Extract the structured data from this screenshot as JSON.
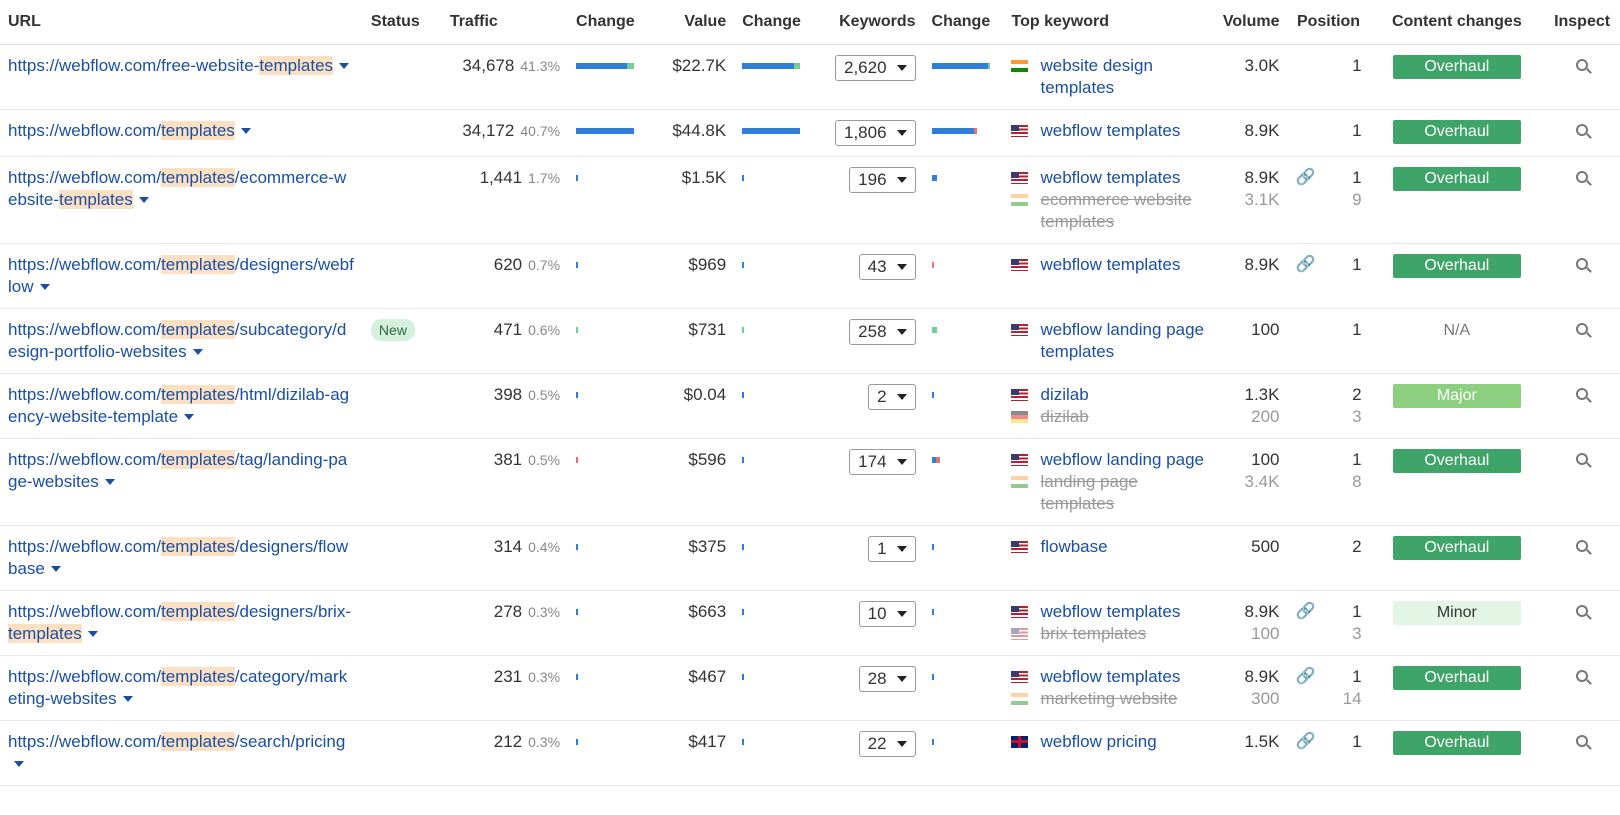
{
  "headers": {
    "url": "URL",
    "status": "Status",
    "traffic": "Traffic",
    "change1": "Change",
    "value": "Value",
    "change2": "Change",
    "keywords": "Keywords",
    "change3": "Change",
    "top_keyword": "Top keyword",
    "volume": "Volume",
    "position": "Position",
    "content_changes": "Content changes",
    "inspect": "Inspect"
  },
  "colors": {
    "link": "#1a4fa3",
    "bar_blue": "#2f7fd8",
    "bar_green": "#6fcf97",
    "bar_red": "#e57373",
    "overhaul": "#3ea468",
    "major": "#8ccf7f",
    "minor": "#e3f6e6",
    "highlight": "#fbe0c4"
  },
  "rows": [
    {
      "url_parts": [
        {
          "t": "https://webflow.com/free-website-"
        },
        {
          "t": "template",
          "hl": true
        },
        {
          "t": "s",
          "hl": true
        }
      ],
      "status": "",
      "traffic": "34,678",
      "traffic_pct": "41.3%",
      "change1": {
        "b": 0.88,
        "g": 0.12,
        "r": 0
      },
      "value": "$22.7K",
      "change2": {
        "b": 0.9,
        "g": 0.1,
        "r": 0
      },
      "keywords": "2,620",
      "change3": {
        "b": 0.96,
        "g": 0.04,
        "r": 0
      },
      "top": [
        {
          "flag": "in",
          "kw": "website design templates",
          "vol": "3.0K",
          "pos": "1",
          "old": false,
          "link": false
        }
      ],
      "content": "Overhaul",
      "content_type": "overhaul"
    },
    {
      "url_parts": [
        {
          "t": "https://webflow.com/"
        },
        {
          "t": "templates",
          "hl": true
        }
      ],
      "status": "",
      "traffic": "34,172",
      "traffic_pct": "40.7%",
      "change1": {
        "b": 1,
        "g": 0,
        "r": 0
      },
      "value": "$44.8K",
      "change2": {
        "b": 1,
        "g": 0,
        "r": 0
      },
      "keywords": "1,806",
      "change3": {
        "b": 0.72,
        "g": 0,
        "r": 0.06
      },
      "top": [
        {
          "flag": "us",
          "kw": "webflow templates",
          "vol": "8.9K",
          "pos": "1",
          "old": false,
          "link": false
        }
      ],
      "content": "Overhaul",
      "content_type": "overhaul"
    },
    {
      "url_parts": [
        {
          "t": "https://webflow.com/"
        },
        {
          "t": "templates",
          "hl": true
        },
        {
          "t": "/ecommerce-website-"
        },
        {
          "t": "templates",
          "hl": true
        }
      ],
      "status": "",
      "traffic": "1,441",
      "traffic_pct": "1.7%",
      "change1": {
        "b": 0.04,
        "g": 0,
        "r": 0
      },
      "value": "$1.5K",
      "change2": {
        "b": 0.03,
        "g": 0,
        "r": 0
      },
      "keywords": "196",
      "change3": {
        "b": 0.08,
        "g": 0,
        "r": 0
      },
      "top": [
        {
          "flag": "us",
          "kw": "webflow templates",
          "vol": "8.9K",
          "pos": "1",
          "old": false,
          "link": true
        },
        {
          "flag": "in",
          "kw": "ecommerce website templates",
          "vol": "3.1K",
          "pos": "9",
          "old": true,
          "link": false
        }
      ],
      "content": "Overhaul",
      "content_type": "overhaul"
    },
    {
      "url_parts": [
        {
          "t": "https://webflow.com/"
        },
        {
          "t": "templates",
          "hl": true
        },
        {
          "t": "/designers/webflow"
        }
      ],
      "status": "",
      "traffic": "620",
      "traffic_pct": "0.7%",
      "change1": {
        "b": 0.03,
        "g": 0,
        "r": 0
      },
      "value": "$969",
      "change2": {
        "b": 0.03,
        "g": 0,
        "r": 0
      },
      "keywords": "43",
      "change3": {
        "b": 0,
        "g": 0,
        "r": 0.03
      },
      "top": [
        {
          "flag": "us",
          "kw": "webflow templates",
          "vol": "8.9K",
          "pos": "1",
          "old": false,
          "link": true
        }
      ],
      "content": "Overhaul",
      "content_type": "overhaul"
    },
    {
      "url_parts": [
        {
          "t": "https://webflow.com/"
        },
        {
          "t": "templates",
          "hl": true
        },
        {
          "t": "/subcategory/design-portfolio-websites"
        }
      ],
      "status": "New",
      "traffic": "471",
      "traffic_pct": "0.6%",
      "change1": {
        "b": 0,
        "g": 0.02,
        "r": 0
      },
      "value": "$731",
      "change2": {
        "b": 0,
        "g": 0.02,
        "r": 0
      },
      "keywords": "258",
      "change3": {
        "b": 0,
        "g": 0.08,
        "r": 0
      },
      "top": [
        {
          "flag": "us",
          "kw": "webflow landing page templates",
          "vol": "100",
          "pos": "1",
          "old": false,
          "link": false
        }
      ],
      "content": "N/A",
      "content_type": "na"
    },
    {
      "url_parts": [
        {
          "t": "https://webflow.com/"
        },
        {
          "t": "templates",
          "hl": true
        },
        {
          "t": "/html/dizilab-agency-website-template"
        }
      ],
      "status": "",
      "traffic": "398",
      "traffic_pct": "0.5%",
      "change1": {
        "b": 0.03,
        "g": 0,
        "r": 0
      },
      "value": "$0.04",
      "change2": {
        "b": 0.03,
        "g": 0,
        "r": 0
      },
      "keywords": "2",
      "change3": {
        "b": 0.03,
        "g": 0,
        "r": 0
      },
      "top": [
        {
          "flag": "us",
          "kw": "dizilab",
          "vol": "1.3K",
          "pos": "2",
          "old": false,
          "link": false
        },
        {
          "flag": "de",
          "kw": "dizilab",
          "vol": "200",
          "pos": "3",
          "old": true,
          "link": false
        }
      ],
      "content": "Major",
      "content_type": "major"
    },
    {
      "url_parts": [
        {
          "t": "https://webflow.com/"
        },
        {
          "t": "templates",
          "hl": true
        },
        {
          "t": "/tag/landing-page-websites"
        }
      ],
      "status": "",
      "traffic": "381",
      "traffic_pct": "0.5%",
      "change1": {
        "b": 0,
        "g": 0,
        "r": 0.03
      },
      "value": "$596",
      "change2": {
        "b": 0.03,
        "g": 0,
        "r": 0
      },
      "keywords": "174",
      "change3": {
        "b": 0.07,
        "g": 0,
        "r": 0.07
      },
      "top": [
        {
          "flag": "us",
          "kw": "webflow landing page",
          "vol": "100",
          "pos": "1",
          "old": false,
          "link": false
        },
        {
          "flag": "in",
          "kw": "landing page templates",
          "vol": "3.4K",
          "pos": "8",
          "old": true,
          "link": false
        }
      ],
      "content": "Overhaul",
      "content_type": "overhaul"
    },
    {
      "url_parts": [
        {
          "t": "https://webflow.com/"
        },
        {
          "t": "templates",
          "hl": true
        },
        {
          "t": "/designers/flowbase"
        }
      ],
      "status": "",
      "traffic": "314",
      "traffic_pct": "0.4%",
      "change1": {
        "b": 0.03,
        "g": 0,
        "r": 0
      },
      "value": "$375",
      "change2": {
        "b": 0.03,
        "g": 0,
        "r": 0
      },
      "keywords": "1",
      "change3": {
        "b": 0.03,
        "g": 0,
        "r": 0
      },
      "top": [
        {
          "flag": "us",
          "kw": "flowbase",
          "vol": "500",
          "pos": "2",
          "old": false,
          "link": false
        }
      ],
      "content": "Overhaul",
      "content_type": "overhaul"
    },
    {
      "url_parts": [
        {
          "t": "https://webflow.com/"
        },
        {
          "t": "templates",
          "hl": true
        },
        {
          "t": "/designers/brix-"
        },
        {
          "t": "templates",
          "hl": true
        }
      ],
      "status": "",
      "traffic": "278",
      "traffic_pct": "0.3%",
      "change1": {
        "b": 0.03,
        "g": 0,
        "r": 0
      },
      "value": "$663",
      "change2": {
        "b": 0.03,
        "g": 0,
        "r": 0
      },
      "keywords": "10",
      "change3": {
        "b": 0.03,
        "g": 0,
        "r": 0
      },
      "top": [
        {
          "flag": "us",
          "kw": "webflow templates",
          "vol": "8.9K",
          "pos": "1",
          "old": false,
          "link": true
        },
        {
          "flag": "us",
          "kw": "brix templates",
          "vol": "100",
          "pos": "3",
          "old": true,
          "link": false
        }
      ],
      "content": "Minor",
      "content_type": "minor"
    },
    {
      "url_parts": [
        {
          "t": "https://webflow.com/"
        },
        {
          "t": "templates",
          "hl": true
        },
        {
          "t": "/category/marketing-websites"
        }
      ],
      "status": "",
      "traffic": "231",
      "traffic_pct": "0.3%",
      "change1": {
        "b": 0.03,
        "g": 0,
        "r": 0
      },
      "value": "$467",
      "change2": {
        "b": 0.03,
        "g": 0,
        "r": 0
      },
      "keywords": "28",
      "change3": {
        "b": 0.03,
        "g": 0,
        "r": 0
      },
      "top": [
        {
          "flag": "us",
          "kw": "webflow templates",
          "vol": "8.9K",
          "pos": "1",
          "old": false,
          "link": true
        },
        {
          "flag": "in",
          "kw": "marketing website",
          "vol": "300",
          "pos": "14",
          "old": true,
          "link": false
        }
      ],
      "content": "Overhaul",
      "content_type": "overhaul"
    },
    {
      "url_parts": [
        {
          "t": "https://webflow.com/"
        },
        {
          "t": "templates",
          "hl": true
        },
        {
          "t": "/search/pricing"
        }
      ],
      "status": "",
      "traffic": "212",
      "traffic_pct": "0.3%",
      "change1": {
        "b": 0.03,
        "g": 0,
        "r": 0
      },
      "value": "$417",
      "change2": {
        "b": 0.03,
        "g": 0,
        "r": 0
      },
      "keywords": "22",
      "change3": {
        "b": 0.03,
        "g": 0,
        "r": 0
      },
      "top": [
        {
          "flag": "gb",
          "kw": "webflow pricing",
          "vol": "1.5K",
          "pos": "1",
          "old": false,
          "link": true
        }
      ],
      "content": "Overhaul",
      "content_type": "overhaul"
    }
  ]
}
